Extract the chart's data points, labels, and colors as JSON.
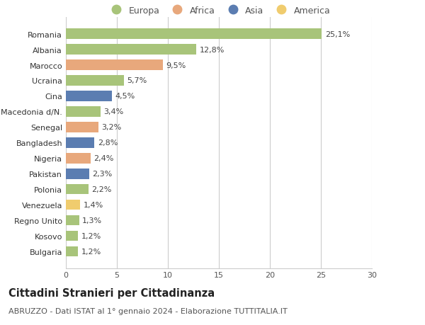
{
  "countries": [
    "Bulgaria",
    "Kosovo",
    "Regno Unito",
    "Venezuela",
    "Polonia",
    "Pakistan",
    "Nigeria",
    "Bangladesh",
    "Senegal",
    "Macedonia d/N.",
    "Cina",
    "Ucraina",
    "Marocco",
    "Albania",
    "Romania"
  ],
  "values": [
    1.2,
    1.2,
    1.3,
    1.4,
    2.2,
    2.3,
    2.4,
    2.8,
    3.2,
    3.4,
    4.5,
    5.7,
    9.5,
    12.8,
    25.1
  ],
  "labels": [
    "1,2%",
    "1,2%",
    "1,3%",
    "1,4%",
    "2,2%",
    "2,3%",
    "2,4%",
    "2,8%",
    "3,2%",
    "3,4%",
    "4,5%",
    "5,7%",
    "9,5%",
    "12,8%",
    "25,1%"
  ],
  "continents": [
    "Europa",
    "Europa",
    "Europa",
    "America",
    "Europa",
    "Asia",
    "Africa",
    "Asia",
    "Africa",
    "Europa",
    "Asia",
    "Europa",
    "Africa",
    "Europa",
    "Europa"
  ],
  "colors": {
    "Europa": "#a8c47a",
    "Africa": "#e8a87c",
    "Asia": "#5b7db1",
    "America": "#f0cc6e"
  },
  "bar_colors": [
    "#a8c47a",
    "#a8c47a",
    "#a8c47a",
    "#f0cc6e",
    "#a8c47a",
    "#5b7db1",
    "#e8a87c",
    "#5b7db1",
    "#e8a87c",
    "#a8c47a",
    "#5b7db1",
    "#a8c47a",
    "#e8a87c",
    "#a8c47a",
    "#a8c47a"
  ],
  "xlim": [
    0,
    30
  ],
  "xticks": [
    0,
    5,
    10,
    15,
    20,
    25,
    30
  ],
  "title": "Cittadini Stranieri per Cittadinanza",
  "subtitle": "ABRUZZO - Dati ISTAT al 1° gennaio 2024 - Elaborazione TUTTITALIA.IT",
  "legend_order": [
    "Europa",
    "Africa",
    "Asia",
    "America"
  ],
  "bg_color": "#ffffff",
  "grid_color": "#cccccc",
  "label_fontsize": 8,
  "tick_fontsize": 8,
  "title_fontsize": 10.5,
  "subtitle_fontsize": 8
}
